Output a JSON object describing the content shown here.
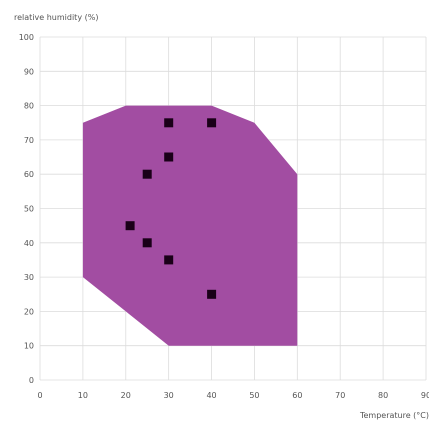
{
  "chart_data": {
    "type": "scatter",
    "ylabel": "relative humidity (%)",
    "xlabel": "Temperature (°C)",
    "xlim": [
      0,
      90
    ],
    "ylim": [
      0,
      100
    ],
    "x_ticks": [
      0,
      10,
      20,
      30,
      40,
      50,
      60,
      70,
      80,
      90
    ],
    "y_ticks": [
      0,
      10,
      20,
      30,
      40,
      50,
      60,
      70,
      80,
      90,
      100
    ],
    "x_tick_labels": [
      "0",
      "10",
      "20",
      "30",
      "40",
      "50",
      "60",
      "70",
      "80",
      "90"
    ],
    "y_tick_labels": [
      "0",
      "10",
      "20",
      "30",
      "40",
      "50",
      "60",
      "70",
      "80",
      "90",
      "100"
    ],
    "grid": true,
    "region": {
      "color": "#a24da2",
      "points": [
        {
          "x": 10,
          "y": 75
        },
        {
          "x": 20,
          "y": 80
        },
        {
          "x": 40,
          "y": 80
        },
        {
          "x": 50,
          "y": 75
        },
        {
          "x": 60,
          "y": 60
        },
        {
          "x": 60,
          "y": 10
        },
        {
          "x": 30,
          "y": 10
        },
        {
          "x": 20,
          "y": 20
        },
        {
          "x": 10,
          "y": 30
        }
      ]
    },
    "points_color": "#1a0018",
    "points": [
      {
        "x": 30,
        "y": 75
      },
      {
        "x": 40,
        "y": 75
      },
      {
        "x": 30,
        "y": 65
      },
      {
        "x": 25,
        "y": 60
      },
      {
        "x": 21,
        "y": 45
      },
      {
        "x": 25,
        "y": 40
      },
      {
        "x": 30,
        "y": 35
      },
      {
        "x": 40,
        "y": 25
      }
    ]
  }
}
